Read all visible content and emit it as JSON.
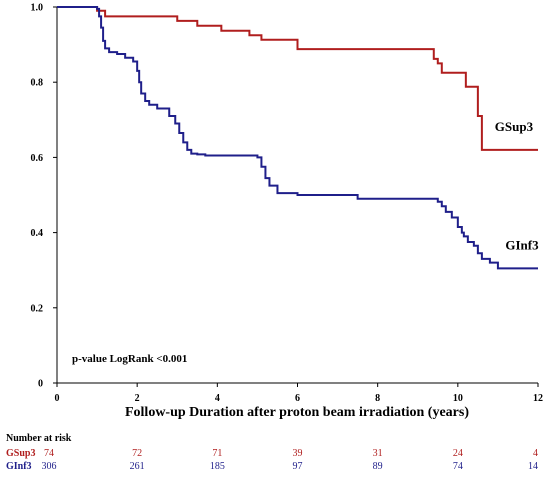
{
  "chart_data": {
    "type": "line",
    "step": true,
    "title": "",
    "xlabel": "Follow-up Duration after proton beam irradiation (years)",
    "ylabel": "",
    "xlim": [
      0,
      12
    ],
    "ylim": [
      0,
      1.0
    ],
    "x_ticks": [
      0,
      2,
      4,
      6,
      8,
      10,
      12
    ],
    "y_ticks": [
      0,
      0.2,
      0.4,
      0.6,
      0.8,
      1.0
    ],
    "x_tick_labels": [
      "0",
      "2",
      "4",
      "6",
      "8",
      "10",
      "12"
    ],
    "y_tick_labels": [
      "0",
      "0.2",
      "0.4",
      "0.6",
      "0.8",
      "1.0"
    ],
    "grid": false,
    "annotation": "p-value LogRank <0.001",
    "series": [
      {
        "name": "GSup3",
        "color": "#b01e1e",
        "x": [
          0,
          1.0,
          1.2,
          3.0,
          3.5,
          4.1,
          4.8,
          5.1,
          6.0,
          9.4,
          9.5,
          9.6,
          10.2,
          10.5,
          10.6,
          12.0
        ],
        "y": [
          1.0,
          0.99,
          0.975,
          0.963,
          0.95,
          0.937,
          0.925,
          0.913,
          0.888,
          0.862,
          0.85,
          0.825,
          0.788,
          0.71,
          0.62,
          0.62
        ]
      },
      {
        "name": "GInf3",
        "color": "#1f1f8a",
        "x": [
          0,
          1.0,
          1.05,
          1.1,
          1.15,
          1.2,
          1.3,
          1.5,
          1.7,
          1.9,
          2.0,
          2.05,
          2.1,
          2.2,
          2.3,
          2.5,
          2.8,
          2.95,
          3.05,
          3.15,
          3.25,
          3.35,
          3.5,
          3.7,
          5.0,
          5.1,
          5.2,
          5.3,
          5.5,
          6.0,
          7.5,
          9.5,
          9.6,
          9.7,
          9.85,
          10.0,
          10.1,
          10.15,
          10.25,
          10.4,
          10.5,
          10.6,
          10.8,
          11.0,
          12.0
        ],
        "y": [
          1.0,
          0.995,
          0.975,
          0.945,
          0.91,
          0.89,
          0.88,
          0.875,
          0.865,
          0.855,
          0.83,
          0.8,
          0.77,
          0.75,
          0.74,
          0.73,
          0.71,
          0.69,
          0.665,
          0.64,
          0.62,
          0.61,
          0.608,
          0.605,
          0.6,
          0.575,
          0.545,
          0.525,
          0.505,
          0.5,
          0.49,
          0.482,
          0.47,
          0.455,
          0.44,
          0.415,
          0.4,
          0.39,
          0.375,
          0.365,
          0.345,
          0.33,
          0.32,
          0.305,
          0.305
        ]
      }
    ],
    "series_label_positions": [
      {
        "name": "GSup3",
        "x": 11.4,
        "y": 0.67
      },
      {
        "name": "GInf3",
        "x": 11.6,
        "y": 0.355
      }
    ]
  },
  "number_at_risk": {
    "title": "Number at risk",
    "columns_x": [
      0,
      2,
      4,
      6,
      8,
      10,
      12
    ],
    "rows": [
      {
        "label": "GSup3",
        "color": "#b01e1e",
        "values": [
          "74",
          "72",
          "71",
          "39",
          "31",
          "24",
          "4"
        ]
      },
      {
        "label": "GInf3",
        "color": "#1f1f8a",
        "values": [
          "306",
          "261",
          "185",
          "97",
          "89",
          "74",
          "14"
        ]
      }
    ]
  }
}
